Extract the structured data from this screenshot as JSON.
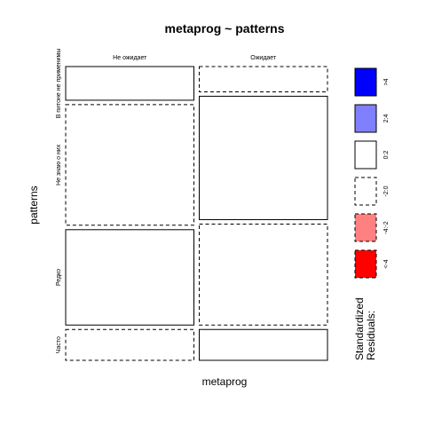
{
  "chart_data": {
    "type": "mosaic",
    "title": "metaprog ~ patterns",
    "xlabel": "metaprog",
    "ylabel": "patterns",
    "x_categories": [
      "Не ожидает",
      "Ожидает"
    ],
    "y_categories": [
      "В питоне не применимы",
      "Не знаю о них",
      "Редко",
      "Часто"
    ],
    "x_proportions": [
      0.5,
      0.5
    ],
    "cells": [
      {
        "x": "Не ожидает",
        "y": "В питоне не применимы",
        "proportion": 0.12,
        "residual_class": "0:2"
      },
      {
        "x": "Не ожидает",
        "y": "Не знаю о них",
        "proportion": 0.43,
        "residual_class": "-2:0"
      },
      {
        "x": "Не ожидает",
        "y": "Редко",
        "proportion": 0.34,
        "residual_class": "0:2"
      },
      {
        "x": "Не ожидает",
        "y": "Часто",
        "proportion": 0.11,
        "residual_class": "-2:0"
      },
      {
        "x": "Ожидает",
        "y": "В питоне не применимы",
        "proportion": 0.09,
        "residual_class": "-2:0"
      },
      {
        "x": "Ожидает",
        "y": "Не знаю о них",
        "proportion": 0.44,
        "residual_class": "0:2"
      },
      {
        "x": "Ожидает",
        "y": "Редко",
        "proportion": 0.36,
        "residual_class": "-2:0"
      },
      {
        "x": "Ожидает",
        "y": "Часто",
        "proportion": 0.11,
        "residual_class": "0:2"
      }
    ],
    "legend": {
      "title_line1": "Standardized",
      "title_line2": "Residuals:",
      "placement": "right",
      "entries": [
        {
          "label": ">4",
          "fill": "#0000ff",
          "dashed": false
        },
        {
          "label": "2:4",
          "fill": "#8080ff",
          "dashed": false
        },
        {
          "label": "0:2",
          "fill": "#ffffff",
          "dashed": false
        },
        {
          "label": "-2:0",
          "fill": "#ffffff",
          "dashed": true
        },
        {
          "label": "-4:-2",
          "fill": "#ff8080",
          "dashed": true
        },
        {
          "label": "<-4",
          "fill": "#ff0000",
          "dashed": true
        }
      ]
    }
  }
}
